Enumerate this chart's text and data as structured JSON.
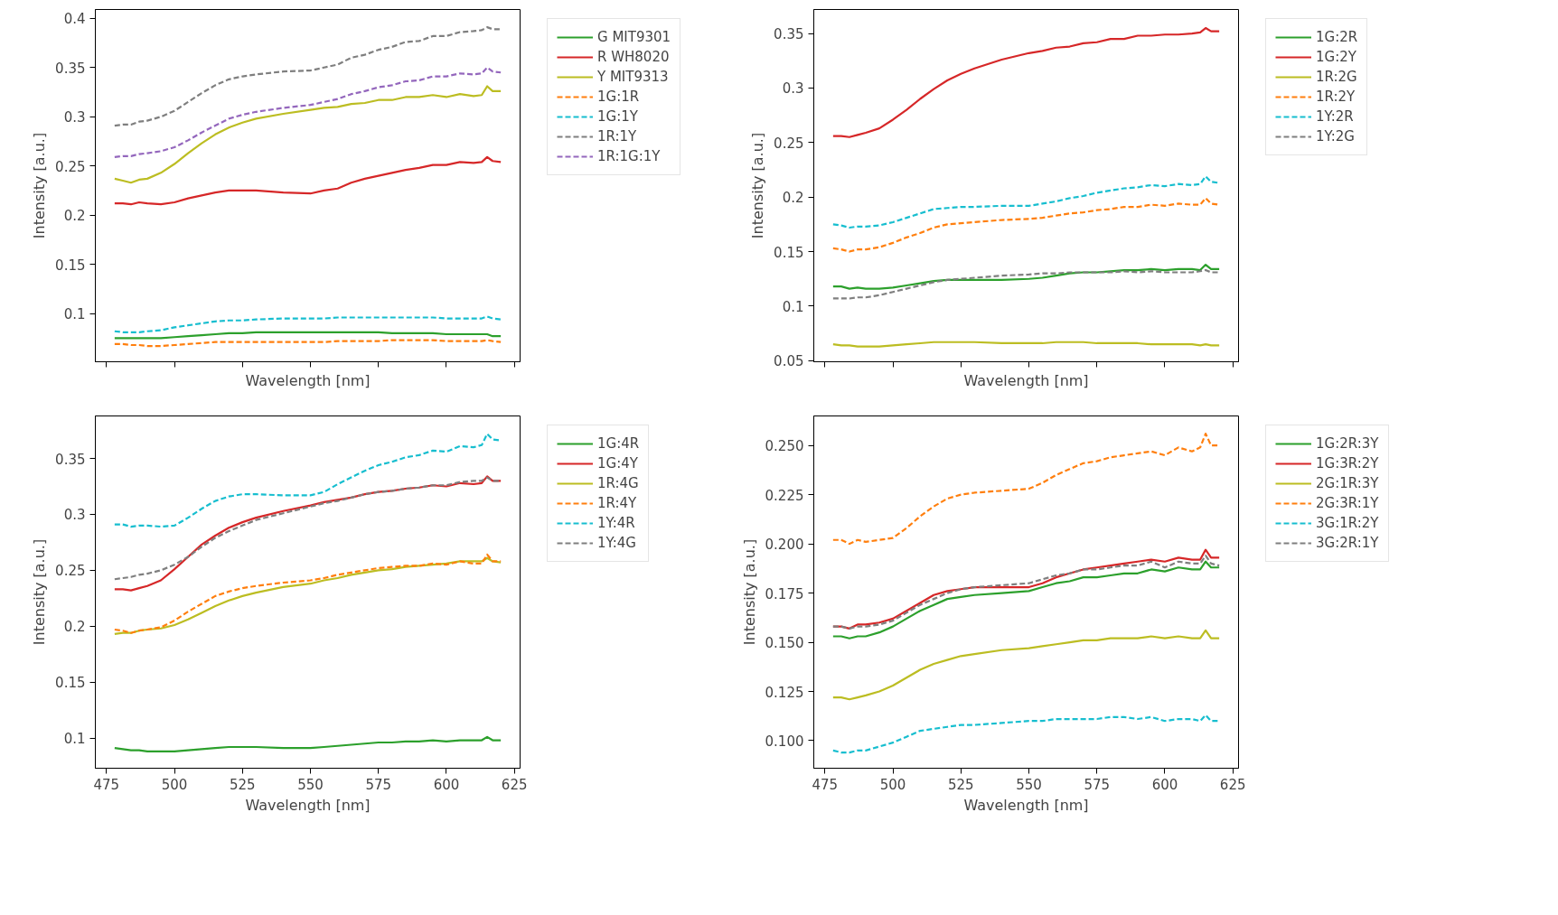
{
  "chart_data": [
    {
      "type": "line",
      "xlabel": "Wavelength [nm]",
      "ylabel": "Intensity [a.u.]",
      "xlim": [
        470.9,
        627.1
      ],
      "ylim": [
        0.051,
        0.409
      ],
      "xticks": [
        475,
        500,
        525,
        550,
        575,
        600,
        625
      ],
      "yticks": [
        0.1,
        0.15,
        0.2,
        0.25,
        0.3,
        0.35,
        0.4
      ],
      "tick_labels": "y",
      "grid": false,
      "legend": "top right",
      "x": [
        478,
        481,
        484,
        487,
        490,
        495,
        500,
        505,
        510,
        515,
        520,
        525,
        530,
        540,
        550,
        555,
        560,
        565,
        570,
        575,
        580,
        585,
        590,
        595,
        600,
        605,
        610,
        613,
        615,
        617,
        620
      ],
      "series": [
        {
          "name": "G MIT9301",
          "color": "#2ca02c",
          "line_style": "solid",
          "values": [
            0.075,
            0.075,
            0.075,
            0.075,
            0.075,
            0.075,
            0.076,
            0.077,
            0.078,
            0.079,
            0.08,
            0.08,
            0.081,
            0.081,
            0.081,
            0.081,
            0.081,
            0.081,
            0.081,
            0.081,
            0.08,
            0.08,
            0.08,
            0.08,
            0.079,
            0.079,
            0.079,
            0.079,
            0.079,
            0.077,
            0.077
          ]
        },
        {
          "name": "R WH8020",
          "color": "#d62728",
          "line_style": "solid",
          "values": [
            0.212,
            0.212,
            0.211,
            0.213,
            0.212,
            0.211,
            0.213,
            0.217,
            0.22,
            0.223,
            0.225,
            0.225,
            0.225,
            0.223,
            0.222,
            0.225,
            0.227,
            0.233,
            0.237,
            0.24,
            0.243,
            0.246,
            0.248,
            0.251,
            0.251,
            0.254,
            0.253,
            0.254,
            0.259,
            0.255,
            0.254
          ]
        },
        {
          "name": "Y MIT9313",
          "color": "#bcbd22",
          "line_style": "solid",
          "values": [
            0.237,
            0.235,
            0.233,
            0.236,
            0.237,
            0.243,
            0.252,
            0.263,
            0.273,
            0.282,
            0.289,
            0.294,
            0.298,
            0.303,
            0.307,
            0.309,
            0.31,
            0.313,
            0.314,
            0.317,
            0.317,
            0.32,
            0.32,
            0.322,
            0.32,
            0.323,
            0.321,
            0.322,
            0.331,
            0.326,
            0.326
          ]
        },
        {
          "name": "1G:1R",
          "color": "#ff7f0e",
          "line_style": "dashed",
          "values": [
            0.069,
            0.069,
            0.068,
            0.068,
            0.067,
            0.067,
            0.068,
            0.069,
            0.07,
            0.071,
            0.071,
            0.071,
            0.071,
            0.071,
            0.071,
            0.071,
            0.072,
            0.072,
            0.072,
            0.072,
            0.073,
            0.073,
            0.073,
            0.073,
            0.072,
            0.072,
            0.072,
            0.072,
            0.073,
            0.072,
            0.071
          ]
        },
        {
          "name": "1G:1Y",
          "color": "#17becf",
          "line_style": "dashed",
          "values": [
            0.082,
            0.081,
            0.081,
            0.081,
            0.082,
            0.083,
            0.086,
            0.088,
            0.09,
            0.092,
            0.093,
            0.093,
            0.094,
            0.095,
            0.095,
            0.095,
            0.096,
            0.096,
            0.096,
            0.096,
            0.096,
            0.096,
            0.096,
            0.096,
            0.095,
            0.095,
            0.095,
            0.095,
            0.097,
            0.095,
            0.094
          ]
        },
        {
          "name": "1R:1Y",
          "color": "#7f7f7f",
          "line_style": "dashed",
          "values": [
            0.291,
            0.292,
            0.292,
            0.295,
            0.296,
            0.3,
            0.306,
            0.315,
            0.324,
            0.332,
            0.338,
            0.341,
            0.343,
            0.346,
            0.347,
            0.35,
            0.353,
            0.36,
            0.363,
            0.368,
            0.371,
            0.376,
            0.377,
            0.382,
            0.382,
            0.386,
            0.387,
            0.388,
            0.391,
            0.389,
            0.389
          ]
        },
        {
          "name": "1R:1G:1Y",
          "color": "#9467bd",
          "line_style": "dashed",
          "values": [
            0.259,
            0.26,
            0.26,
            0.262,
            0.263,
            0.265,
            0.269,
            0.276,
            0.284,
            0.291,
            0.298,
            0.302,
            0.305,
            0.309,
            0.312,
            0.315,
            0.318,
            0.323,
            0.326,
            0.33,
            0.332,
            0.336,
            0.337,
            0.341,
            0.341,
            0.344,
            0.343,
            0.344,
            0.35,
            0.346,
            0.345
          ]
        }
      ]
    },
    {
      "type": "line",
      "xlabel": "Wavelength [nm]",
      "ylabel": "Intensity [a.u.]",
      "xlim": [
        470.9,
        627.1
      ],
      "ylim": [
        0.049,
        0.372
      ],
      "xticks": [
        475,
        500,
        525,
        550,
        575,
        600,
        625
      ],
      "yticks": [
        0.05,
        0.1,
        0.15,
        0.2,
        0.25,
        0.3,
        0.35
      ],
      "tick_labels": "y",
      "grid": false,
      "legend": "top right",
      "x": [
        478,
        481,
        484,
        487,
        490,
        495,
        500,
        505,
        510,
        515,
        520,
        525,
        530,
        540,
        550,
        555,
        560,
        565,
        570,
        575,
        580,
        585,
        590,
        595,
        600,
        605,
        610,
        613,
        615,
        617,
        620
      ],
      "series": [
        {
          "name": "1G:2R",
          "color": "#2ca02c",
          "line_style": "solid",
          "values": [
            0.118,
            0.118,
            0.116,
            0.117,
            0.116,
            0.116,
            0.117,
            0.119,
            0.121,
            0.123,
            0.124,
            0.124,
            0.124,
            0.124,
            0.125,
            0.126,
            0.128,
            0.13,
            0.131,
            0.131,
            0.132,
            0.133,
            0.133,
            0.134,
            0.133,
            0.134,
            0.134,
            0.133,
            0.138,
            0.134,
            0.134
          ]
        },
        {
          "name": "1G:2Y",
          "color": "#d62728",
          "line_style": "solid",
          "values": [
            0.256,
            0.256,
            0.255,
            0.257,
            0.259,
            0.263,
            0.271,
            0.28,
            0.29,
            0.299,
            0.307,
            0.313,
            0.318,
            0.326,
            0.332,
            0.334,
            0.337,
            0.338,
            0.341,
            0.342,
            0.345,
            0.345,
            0.348,
            0.348,
            0.349,
            0.349,
            0.35,
            0.351,
            0.355,
            0.352,
            0.352
          ]
        },
        {
          "name": "1R:2G",
          "color": "#bcbd22",
          "line_style": "solid",
          "values": [
            0.065,
            0.064,
            0.064,
            0.063,
            0.063,
            0.063,
            0.064,
            0.065,
            0.066,
            0.067,
            0.067,
            0.067,
            0.067,
            0.066,
            0.066,
            0.066,
            0.067,
            0.067,
            0.067,
            0.066,
            0.066,
            0.066,
            0.066,
            0.065,
            0.065,
            0.065,
            0.065,
            0.064,
            0.065,
            0.064,
            0.064
          ]
        },
        {
          "name": "1R:2Y",
          "color": "#ff7f0e",
          "line_style": "dashed",
          "values": [
            0.153,
            0.152,
            0.15,
            0.152,
            0.152,
            0.154,
            0.158,
            0.163,
            0.167,
            0.172,
            0.175,
            0.176,
            0.177,
            0.179,
            0.18,
            0.181,
            0.183,
            0.185,
            0.186,
            0.188,
            0.189,
            0.191,
            0.191,
            0.193,
            0.192,
            0.194,
            0.193,
            0.193,
            0.199,
            0.194,
            0.193
          ]
        },
        {
          "name": "1Y:2R",
          "color": "#17becf",
          "line_style": "dashed",
          "values": [
            0.175,
            0.174,
            0.172,
            0.173,
            0.173,
            0.174,
            0.177,
            0.181,
            0.185,
            0.189,
            0.19,
            0.191,
            0.191,
            0.192,
            0.192,
            0.194,
            0.196,
            0.199,
            0.201,
            0.204,
            0.206,
            0.208,
            0.209,
            0.211,
            0.21,
            0.212,
            0.211,
            0.212,
            0.219,
            0.214,
            0.213
          ]
        },
        {
          "name": "1Y:2G",
          "color": "#7f7f7f",
          "line_style": "dashed",
          "values": [
            0.107,
            0.107,
            0.107,
            0.108,
            0.108,
            0.11,
            0.113,
            0.116,
            0.119,
            0.122,
            0.124,
            0.125,
            0.126,
            0.128,
            0.129,
            0.13,
            0.13,
            0.131,
            0.131,
            0.131,
            0.131,
            0.132,
            0.131,
            0.132,
            0.131,
            0.131,
            0.131,
            0.132,
            0.133,
            0.131,
            0.131
          ]
        }
      ]
    },
    {
      "type": "line",
      "xlabel": "Wavelength [nm]",
      "ylabel": "Intensity [a.u.]",
      "xlim": [
        470.9,
        627.1
      ],
      "ylim": [
        0.073,
        0.388
      ],
      "xticks": [
        475,
        500,
        525,
        550,
        575,
        600,
        625
      ],
      "yticks": [
        0.1,
        0.15,
        0.2,
        0.25,
        0.3,
        0.35
      ],
      "grid": false,
      "legend": "top right",
      "x": [
        478,
        481,
        484,
        487,
        490,
        495,
        500,
        505,
        510,
        515,
        520,
        525,
        530,
        540,
        550,
        555,
        560,
        565,
        570,
        575,
        580,
        585,
        590,
        595,
        600,
        605,
        610,
        613,
        615,
        617,
        620
      ],
      "series": [
        {
          "name": "1G:4R",
          "color": "#2ca02c",
          "line_style": "solid",
          "values": [
            0.091,
            0.09,
            0.089,
            0.089,
            0.088,
            0.088,
            0.088,
            0.089,
            0.09,
            0.091,
            0.092,
            0.092,
            0.092,
            0.091,
            0.091,
            0.092,
            0.093,
            0.094,
            0.095,
            0.096,
            0.096,
            0.097,
            0.097,
            0.098,
            0.097,
            0.098,
            0.098,
            0.098,
            0.101,
            0.098,
            0.098
          ]
        },
        {
          "name": "1G:4Y",
          "color": "#d62728",
          "line_style": "solid",
          "values": [
            0.233,
            0.233,
            0.232,
            0.234,
            0.236,
            0.241,
            0.251,
            0.262,
            0.273,
            0.281,
            0.288,
            0.293,
            0.297,
            0.303,
            0.308,
            0.311,
            0.313,
            0.315,
            0.318,
            0.32,
            0.321,
            0.323,
            0.324,
            0.326,
            0.325,
            0.328,
            0.327,
            0.328,
            0.334,
            0.33,
            0.33
          ]
        },
        {
          "name": "1R:4G",
          "color": "#bcbd22",
          "line_style": "solid",
          "values": [
            0.193,
            0.194,
            0.194,
            0.196,
            0.197,
            0.198,
            0.201,
            0.206,
            0.212,
            0.218,
            0.223,
            0.227,
            0.23,
            0.235,
            0.238,
            0.241,
            0.243,
            0.246,
            0.248,
            0.25,
            0.251,
            0.253,
            0.254,
            0.255,
            0.256,
            0.258,
            0.258,
            0.258,
            0.261,
            0.258,
            0.257
          ]
        },
        {
          "name": "1R:4Y",
          "color": "#ff7f0e",
          "line_style": "dashed",
          "values": [
            0.197,
            0.196,
            0.194,
            0.196,
            0.197,
            0.199,
            0.205,
            0.213,
            0.22,
            0.227,
            0.231,
            0.234,
            0.236,
            0.239,
            0.241,
            0.243,
            0.246,
            0.248,
            0.25,
            0.252,
            0.253,
            0.254,
            0.254,
            0.256,
            0.255,
            0.258,
            0.256,
            0.256,
            0.264,
            0.258,
            0.258
          ]
        },
        {
          "name": "1Y:4R",
          "color": "#17becf",
          "line_style": "dashed",
          "values": [
            0.291,
            0.291,
            0.289,
            0.29,
            0.29,
            0.289,
            0.29,
            0.297,
            0.305,
            0.312,
            0.316,
            0.318,
            0.318,
            0.317,
            0.317,
            0.32,
            0.327,
            0.333,
            0.339,
            0.344,
            0.347,
            0.351,
            0.353,
            0.357,
            0.356,
            0.361,
            0.36,
            0.362,
            0.372,
            0.367,
            0.366
          ]
        },
        {
          "name": "1Y:4G",
          "color": "#7f7f7f",
          "line_style": "dashed",
          "values": [
            0.242,
            0.243,
            0.244,
            0.246,
            0.247,
            0.25,
            0.255,
            0.262,
            0.271,
            0.279,
            0.285,
            0.29,
            0.295,
            0.301,
            0.307,
            0.31,
            0.312,
            0.315,
            0.318,
            0.32,
            0.321,
            0.323,
            0.324,
            0.326,
            0.326,
            0.329,
            0.33,
            0.33,
            0.333,
            0.33,
            0.33
          ]
        }
      ]
    },
    {
      "type": "line",
      "xlabel": "Wavelength [nm]",
      "ylabel": "Intensity [a.u.]",
      "xlim": [
        470.9,
        627.1
      ],
      "ylim": [
        0.086,
        0.265
      ],
      "xticks": [
        475,
        500,
        525,
        550,
        575,
        600,
        625
      ],
      "yticks": [
        {
          "value": 0.1,
          "label": "0.100"
        },
        {
          "value": 0.125,
          "label": "0.125"
        },
        {
          "value": 0.15,
          "label": "0.150"
        },
        {
          "value": 0.175,
          "label": "0.175"
        },
        {
          "value": 0.2,
          "label": "0.200"
        },
        {
          "value": 0.225,
          "label": "0.225"
        },
        {
          "value": 0.25,
          "label": "0.250"
        }
      ],
      "grid": false,
      "legend": "top right",
      "x": [
        478,
        481,
        484,
        487,
        490,
        495,
        500,
        505,
        510,
        515,
        520,
        525,
        530,
        540,
        550,
        555,
        560,
        565,
        570,
        575,
        580,
        585,
        590,
        595,
        600,
        605,
        610,
        613,
        615,
        617,
        620
      ],
      "series": [
        {
          "name": "1G:2R:3Y",
          "color": "#2ca02c",
          "line_style": "solid",
          "values": [
            0.153,
            0.153,
            0.152,
            0.153,
            0.153,
            0.155,
            0.158,
            0.162,
            0.166,
            0.169,
            0.172,
            0.173,
            0.174,
            0.175,
            0.176,
            0.178,
            0.18,
            0.181,
            0.183,
            0.183,
            0.184,
            0.185,
            0.185,
            0.187,
            0.186,
            0.188,
            0.187,
            0.187,
            0.191,
            0.188,
            0.188
          ]
        },
        {
          "name": "1G:3R:2Y",
          "color": "#d62728",
          "line_style": "solid",
          "values": [
            0.158,
            0.158,
            0.157,
            0.159,
            0.159,
            0.16,
            0.162,
            0.166,
            0.17,
            0.174,
            0.176,
            0.177,
            0.178,
            0.178,
            0.178,
            0.18,
            0.183,
            0.185,
            0.187,
            0.188,
            0.189,
            0.19,
            0.191,
            0.192,
            0.191,
            0.193,
            0.192,
            0.192,
            0.197,
            0.193,
            0.193
          ]
        },
        {
          "name": "2G:1R:3Y",
          "color": "#bcbd22",
          "line_style": "solid",
          "values": [
            0.122,
            0.122,
            0.121,
            0.122,
            0.123,
            0.125,
            0.128,
            0.132,
            0.136,
            0.139,
            0.141,
            0.143,
            0.144,
            0.146,
            0.147,
            0.148,
            0.149,
            0.15,
            0.151,
            0.151,
            0.152,
            0.152,
            0.152,
            0.153,
            0.152,
            0.153,
            0.152,
            0.152,
            0.156,
            0.152,
            0.152
          ]
        },
        {
          "name": "2G:3R:1Y",
          "color": "#ff7f0e",
          "line_style": "dashed",
          "values": [
            0.202,
            0.202,
            0.2,
            0.202,
            0.201,
            0.202,
            0.203,
            0.208,
            0.214,
            0.219,
            0.223,
            0.225,
            0.226,
            0.227,
            0.228,
            0.231,
            0.235,
            0.238,
            0.241,
            0.242,
            0.244,
            0.245,
            0.246,
            0.247,
            0.245,
            0.249,
            0.247,
            0.249,
            0.256,
            0.25,
            0.25
          ]
        },
        {
          "name": "3G:1R:2Y",
          "color": "#17becf",
          "line_style": "dashed",
          "values": [
            0.095,
            0.094,
            0.094,
            0.095,
            0.095,
            0.097,
            0.099,
            0.102,
            0.105,
            0.106,
            0.107,
            0.108,
            0.108,
            0.109,
            0.11,
            0.11,
            0.111,
            0.111,
            0.111,
            0.111,
            0.112,
            0.112,
            0.111,
            0.112,
            0.11,
            0.111,
            0.111,
            0.11,
            0.113,
            0.11,
            0.11
          ]
        },
        {
          "name": "3G:2R:1Y",
          "color": "#7f7f7f",
          "line_style": "dashed",
          "values": [
            0.158,
            0.158,
            0.157,
            0.158,
            0.158,
            0.159,
            0.161,
            0.165,
            0.169,
            0.172,
            0.175,
            0.177,
            0.178,
            0.179,
            0.18,
            0.182,
            0.184,
            0.185,
            0.187,
            0.187,
            0.188,
            0.189,
            0.189,
            0.191,
            0.188,
            0.191,
            0.19,
            0.19,
            0.194,
            0.19,
            0.189
          ]
        }
      ]
    }
  ]
}
